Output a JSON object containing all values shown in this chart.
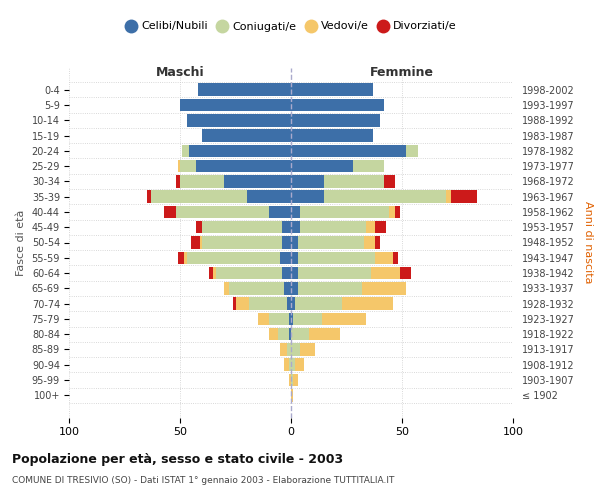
{
  "age_groups": [
    "100+",
    "95-99",
    "90-94",
    "85-89",
    "80-84",
    "75-79",
    "70-74",
    "65-69",
    "60-64",
    "55-59",
    "50-54",
    "45-49",
    "40-44",
    "35-39",
    "30-34",
    "25-29",
    "20-24",
    "15-19",
    "10-14",
    "5-9",
    "0-4"
  ],
  "birth_years": [
    "≤ 1902",
    "1903-1907",
    "1908-1912",
    "1913-1917",
    "1918-1922",
    "1923-1927",
    "1928-1932",
    "1933-1937",
    "1938-1942",
    "1943-1947",
    "1948-1952",
    "1953-1957",
    "1958-1962",
    "1963-1967",
    "1968-1972",
    "1973-1977",
    "1978-1982",
    "1983-1987",
    "1988-1992",
    "1993-1997",
    "1998-2002"
  ],
  "colors": {
    "celibe": "#3d6fa8",
    "coniugato": "#c5d6a0",
    "vedovo": "#f5c76a",
    "divorziato": "#cc1a1a"
  },
  "maschi": {
    "celibe": [
      0,
      0,
      0,
      0,
      1,
      1,
      2,
      3,
      4,
      5,
      4,
      4,
      10,
      20,
      30,
      43,
      46,
      40,
      47,
      50,
      42
    ],
    "coniugato": [
      0,
      0,
      1,
      2,
      5,
      9,
      17,
      25,
      30,
      42,
      36,
      36,
      42,
      43,
      20,
      7,
      3,
      0,
      0,
      0,
      0
    ],
    "vedovo": [
      0,
      1,
      2,
      3,
      4,
      5,
      6,
      2,
      1,
      1,
      1,
      0,
      0,
      0,
      0,
      1,
      0,
      0,
      0,
      0,
      0
    ],
    "divorziato": [
      0,
      0,
      0,
      0,
      0,
      0,
      1,
      0,
      2,
      3,
      4,
      3,
      5,
      2,
      2,
      0,
      0,
      0,
      0,
      0,
      0
    ]
  },
  "femmine": {
    "nubile": [
      0,
      0,
      0,
      0,
      0,
      1,
      2,
      3,
      3,
      3,
      3,
      4,
      4,
      15,
      15,
      28,
      52,
      37,
      40,
      42,
      37
    ],
    "coniugata": [
      0,
      1,
      2,
      4,
      8,
      13,
      21,
      29,
      33,
      35,
      30,
      30,
      40,
      55,
      27,
      14,
      5,
      0,
      0,
      0,
      0
    ],
    "vedova": [
      1,
      2,
      4,
      7,
      14,
      20,
      23,
      20,
      13,
      8,
      5,
      4,
      3,
      2,
      0,
      0,
      0,
      0,
      0,
      0,
      0
    ],
    "divorziata": [
      0,
      0,
      0,
      0,
      0,
      0,
      0,
      0,
      5,
      2,
      2,
      5,
      2,
      12,
      5,
      0,
      0,
      0,
      0,
      0,
      0
    ]
  },
  "title": "Popolazione per età, sesso e stato civile - 2003",
  "subtitle": "COMUNE DI TRESIVIO (SO) - Dati ISTAT 1° gennaio 2003 - Elaborazione TUTTITALIA.IT",
  "xlabel_maschi": "Maschi",
  "xlabel_femmine": "Femmine",
  "ylabel_left": "Fasce di età",
  "ylabel_right": "Anni di nascita",
  "xlim": 100,
  "bg_color": "#ffffff",
  "grid_color": "#cccccc",
  "legend_labels": [
    "Celibi/Nubili",
    "Coniugati/e",
    "Vedovi/e",
    "Divorziati/e"
  ]
}
